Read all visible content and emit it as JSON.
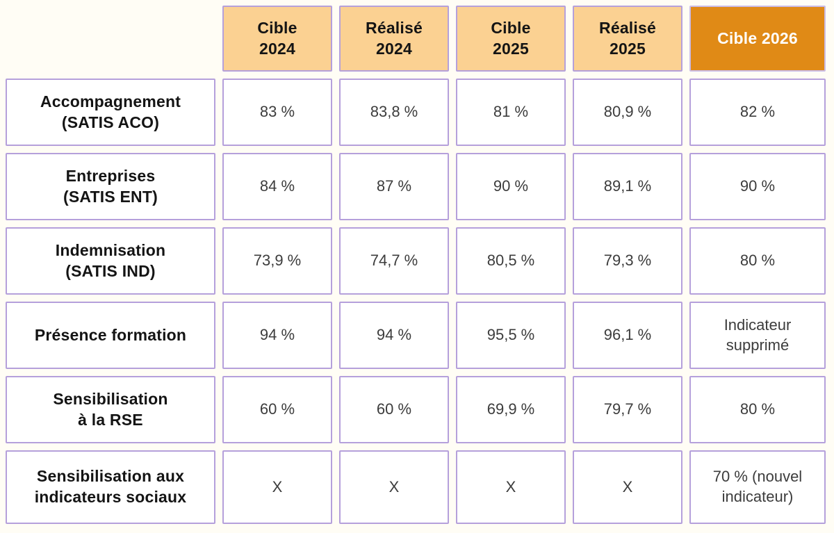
{
  "colors": {
    "page_background": "#FFFDF5",
    "cell_border": "#B5A0DB",
    "header_light_bg": "#FBD192",
    "header_dark_bg": "#E08A16",
    "header_dark_text": "#FFFFFF",
    "label_text": "#141414",
    "value_text": "#3C3C3C",
    "cell_bg": "#FFFFFF"
  },
  "chart_data": {
    "type": "table",
    "title": "",
    "columns": [
      "",
      "Cible\n2024",
      "Réalisé\n2024",
      "Cible\n2025",
      "Réalisé\n2025",
      "Cible 2026"
    ],
    "rows": [
      {
        "label": "Accompagnement\n(SATIS ACO)",
        "values": [
          "83 %",
          "83,8 %",
          "81 %",
          "80,9 %",
          "82 %"
        ]
      },
      {
        "label": "Entreprises\n(SATIS ENT)",
        "values": [
          "84 %",
          "87 %",
          "90 %",
          "89,1 %",
          "90 %"
        ]
      },
      {
        "label": "Indemnisation\n(SATIS IND)",
        "values": [
          "73,9 %",
          "74,7 %",
          "80,5 %",
          "79,3 %",
          "80 %"
        ]
      },
      {
        "label": "Présence formation",
        "values": [
          "94 %",
          "94 %",
          "95,5 %",
          "96,1 %",
          "Indicateur\nsupprimé"
        ]
      },
      {
        "label": "Sensibilisation\nà la RSE",
        "values": [
          "60 %",
          "60 %",
          "69,9 %",
          "79,7 %",
          "80 %"
        ]
      },
      {
        "label": "Sensibilisation aux\nindicateurs sociaux",
        "values": [
          "X",
          "X",
          "X",
          "X",
          "70 % (nouvel\nindicateur)"
        ]
      }
    ],
    "layout_hints": {
      "first_column_is_row_labels": true,
      "last_header_highlighted": true,
      "grid": "separated-cells"
    }
  }
}
